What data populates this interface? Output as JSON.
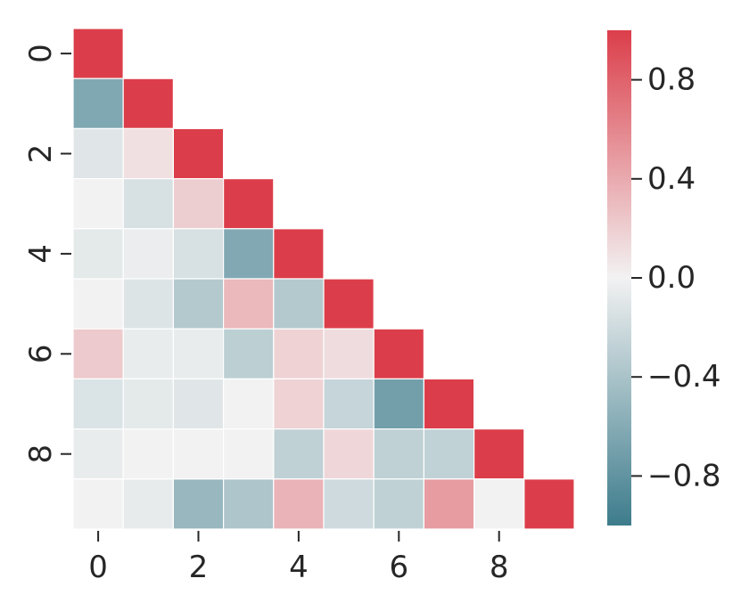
{
  "chart_data": {
    "type": "heatmap",
    "title": "",
    "xlabel": "",
    "ylabel": "",
    "size": 10,
    "mask": "upper-triangle",
    "x_tick_labels": [
      "0",
      "2",
      "4",
      "6",
      "8"
    ],
    "x_tick_indices": [
      0,
      2,
      4,
      6,
      8
    ],
    "y_tick_labels": [
      "0",
      "2",
      "4",
      "6",
      "8"
    ],
    "y_tick_indices": [
      0,
      2,
      4,
      6,
      8
    ],
    "values": [
      [
        1.0
      ],
      [
        -0.63,
        1.0
      ],
      [
        -0.1,
        0.1,
        1.0
      ],
      [
        0.0,
        -0.15,
        0.2,
        1.0
      ],
      [
        -0.08,
        -0.04,
        -0.15,
        -0.62,
        1.0
      ],
      [
        0.0,
        -0.12,
        -0.35,
        0.32,
        -0.35,
        1.0
      ],
      [
        0.22,
        -0.05,
        -0.05,
        -0.3,
        0.18,
        0.12,
        1.0
      ],
      [
        -0.13,
        -0.08,
        -0.1,
        0.0,
        0.18,
        -0.25,
        -0.7,
        1.0
      ],
      [
        -0.05,
        0.0,
        0.0,
        0.0,
        -0.28,
        0.15,
        -0.28,
        -0.27,
        1.0
      ],
      [
        0.0,
        -0.06,
        -0.5,
        -0.38,
        0.35,
        -0.2,
        -0.28,
        0.48,
        0.0,
        1.0
      ]
    ],
    "colorbar": {
      "vmin": -1.0,
      "vmax": 1.0,
      "tick_values": [
        0.8,
        0.4,
        0.0,
        -0.4,
        -0.8
      ],
      "tick_labels": [
        "0.8",
        "0.4",
        "0.0",
        "−0.4",
        "−0.8"
      ]
    },
    "colormap": {
      "low": "#3d7c8c",
      "mid": "#f2f2f2",
      "high": "#db3e4a"
    }
  }
}
